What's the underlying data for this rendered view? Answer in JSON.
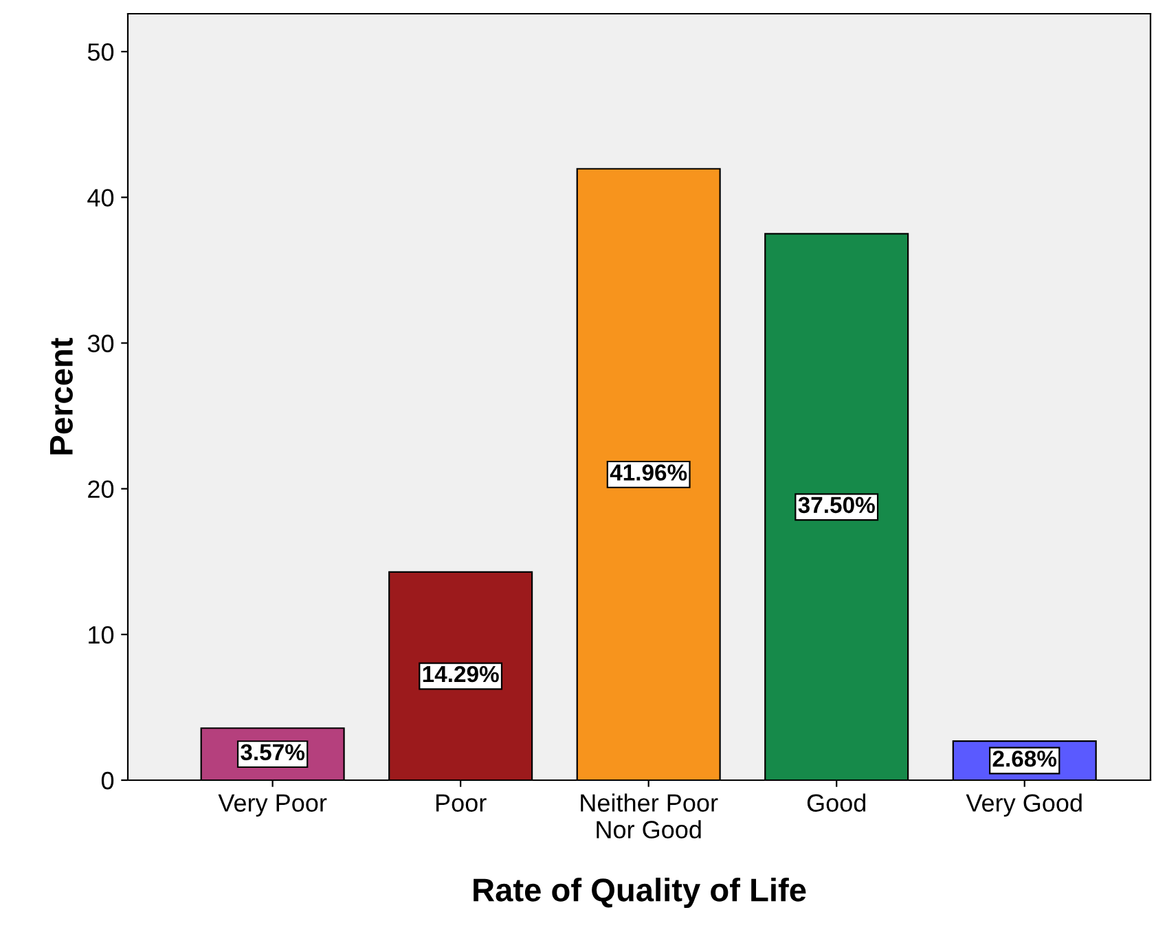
{
  "chart_data": {
    "type": "bar",
    "xlabel": "Rate of Quality of Life",
    "ylabel": "Percent",
    "categories": [
      "Very Poor",
      "Poor",
      "Neither Poor\nNor Good",
      "Good",
      "Very Good"
    ],
    "values": [
      3.57,
      14.29,
      41.96,
      37.5,
      2.68
    ],
    "colors": [
      "#b5407d",
      "#9c1a1c",
      "#f7941d",
      "#168a4a",
      "#5a5aff"
    ],
    "value_labels": [
      "3.57%",
      "14.29%",
      "41.96%",
      "37.50%",
      "2.68%"
    ],
    "ylim": [
      0,
      52.6
    ],
    "yticks": [
      0,
      10,
      20,
      30,
      40,
      50
    ],
    "grid": false
  }
}
